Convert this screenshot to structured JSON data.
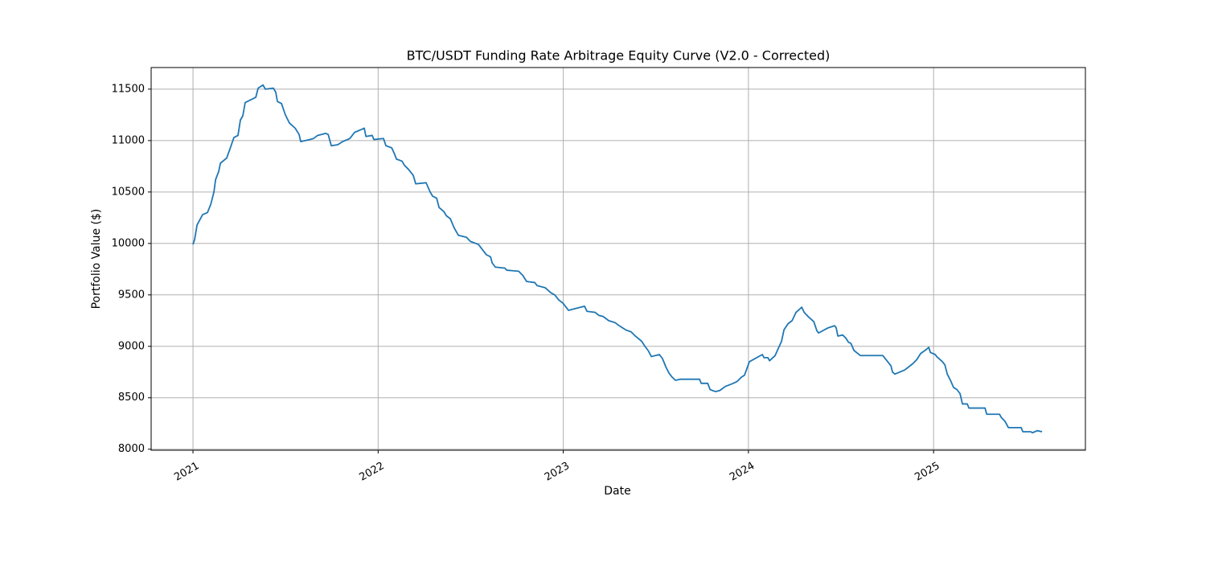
{
  "chart_data": {
    "type": "line",
    "title": "BTC/USDT Funding Rate Arbitrage Equity Curve (V2.0 - Corrected)",
    "x_label": "Date",
    "y_label": "Portfolio Value ($)",
    "xlim": [
      2020.774,
      2025.82
    ],
    "ylim": [
      7990,
      11710
    ],
    "xticks": [
      2021,
      2022,
      2023,
      2024,
      2025
    ],
    "yticks": [
      8000,
      8500,
      9000,
      9500,
      10000,
      10500,
      11000,
      11500
    ],
    "grid": true,
    "series": [
      {
        "color": "#1f77b4",
        "x": [
          2021.0,
          2021.009,
          2021.022,
          2021.052,
          2021.078,
          2021.096,
          2021.113,
          2021.122,
          2021.139,
          2021.148,
          2021.182,
          2021.2,
          2021.221,
          2021.243,
          2021.256,
          2021.269,
          2021.282,
          2021.339,
          2021.352,
          2021.378,
          2021.391,
          2021.434,
          2021.447,
          2021.456,
          2021.478,
          2021.499,
          2021.521,
          2021.552,
          2021.573,
          2021.582,
          2021.63,
          2021.651,
          2021.673,
          2021.717,
          2021.73,
          2021.747,
          2021.782,
          2021.808,
          2021.847,
          2021.873,
          2021.912,
          2021.925,
          2021.934,
          2021.968,
          2021.977,
          2022.029,
          2022.042,
          2022.073,
          2022.086,
          2022.099,
          2022.129,
          2022.142,
          2022.164,
          2022.19,
          2022.203,
          2022.259,
          2022.281,
          2022.294,
          2022.316,
          2022.329,
          2022.355,
          2022.368,
          2022.39,
          2022.411,
          2022.433,
          2022.477,
          2022.498,
          2022.542,
          2022.563,
          2022.585,
          2022.607,
          2022.616,
          2022.633,
          2022.685,
          2022.694,
          2022.759,
          2022.781,
          2022.802,
          2022.846,
          2022.859,
          2022.902,
          2022.933,
          2022.954,
          2022.976,
          2022.998,
          2023.028,
          2023.115,
          2023.128,
          2023.172,
          2023.193,
          2023.215,
          2023.245,
          2023.28,
          2023.302,
          2023.337,
          2023.367,
          2023.389,
          2023.423,
          2023.441,
          2023.458,
          2023.476,
          2023.497,
          2023.519,
          2023.536,
          2023.554,
          2023.571,
          2023.588,
          2023.606,
          2023.632,
          2023.736,
          2023.745,
          2023.78,
          2023.793,
          2023.806,
          2023.823,
          2023.845,
          2023.875,
          2023.918,
          2023.94,
          2023.962,
          2023.979,
          2024.005,
          2024.075,
          2024.084,
          2024.105,
          2024.114,
          2024.144,
          2024.179,
          2024.192,
          2024.214,
          2024.236,
          2024.257,
          2024.288,
          2024.301,
          2024.322,
          2024.353,
          2024.37,
          2024.379,
          2024.431,
          2024.466,
          2024.474,
          2024.483,
          2024.509,
          2024.526,
          2024.54,
          2024.553,
          2024.57,
          2024.605,
          2024.726,
          2024.748,
          2024.77,
          2024.778,
          2024.791,
          2024.844,
          2024.887,
          2024.909,
          2024.93,
          2024.961,
          2024.974,
          2024.983,
          2025.009,
          2025.017,
          2025.048,
          2025.061,
          2025.074,
          2025.091,
          2025.108,
          2025.126,
          2025.143,
          2025.156,
          2025.182,
          2025.191,
          2025.278,
          2025.287,
          2025.356,
          2025.365,
          2025.386,
          2025.404,
          2025.473,
          2025.482,
          2025.525,
          2025.534,
          2025.56,
          2025.586
        ],
        "values": [
          9990,
          10040,
          10180,
          10280,
          10300,
          10380,
          10500,
          10620,
          10700,
          10780,
          10830,
          10920,
          11030,
          11050,
          11200,
          11240,
          11370,
          11420,
          11510,
          11540,
          11500,
          11510,
          11470,
          11380,
          11360,
          11250,
          11170,
          11120,
          11060,
          10990,
          11010,
          11020,
          11050,
          11070,
          11060,
          10950,
          10960,
          10990,
          11020,
          11080,
          11110,
          11120,
          11040,
          11050,
          11010,
          11020,
          10950,
          10930,
          10880,
          10820,
          10800,
          10760,
          10720,
          10660,
          10580,
          10590,
          10500,
          10460,
          10440,
          10350,
          10310,
          10270,
          10240,
          10150,
          10080,
          10060,
          10020,
          9990,
          9940,
          9890,
          9870,
          9810,
          9770,
          9760,
          9740,
          9730,
          9690,
          9630,
          9620,
          9590,
          9570,
          9520,
          9500,
          9450,
          9420,
          9350,
          9390,
          9340,
          9330,
          9300,
          9290,
          9250,
          9230,
          9200,
          9160,
          9140,
          9100,
          9050,
          9000,
          8960,
          8900,
          8910,
          8920,
          8880,
          8800,
          8740,
          8700,
          8670,
          8680,
          8680,
          8640,
          8640,
          8580,
          8570,
          8560,
          8570,
          8610,
          8640,
          8660,
          8700,
          8720,
          8850,
          8920,
          8890,
          8890,
          8860,
          8910,
          9050,
          9160,
          9220,
          9250,
          9330,
          9380,
          9330,
          9290,
          9240,
          9150,
          9130,
          9180,
          9200,
          9180,
          9100,
          9110,
          9080,
          9040,
          9030,
          8960,
          8910,
          8910,
          8860,
          8810,
          8750,
          8730,
          8770,
          8830,
          8870,
          8930,
          8970,
          8990,
          8940,
          8920,
          8900,
          8850,
          8820,
          8730,
          8670,
          8600,
          8580,
          8540,
          8440,
          8440,
          8400,
          8400,
          8340,
          8340,
          8310,
          8270,
          8210,
          8210,
          8170,
          8170,
          8160,
          8180,
          8170
        ]
      }
    ]
  }
}
